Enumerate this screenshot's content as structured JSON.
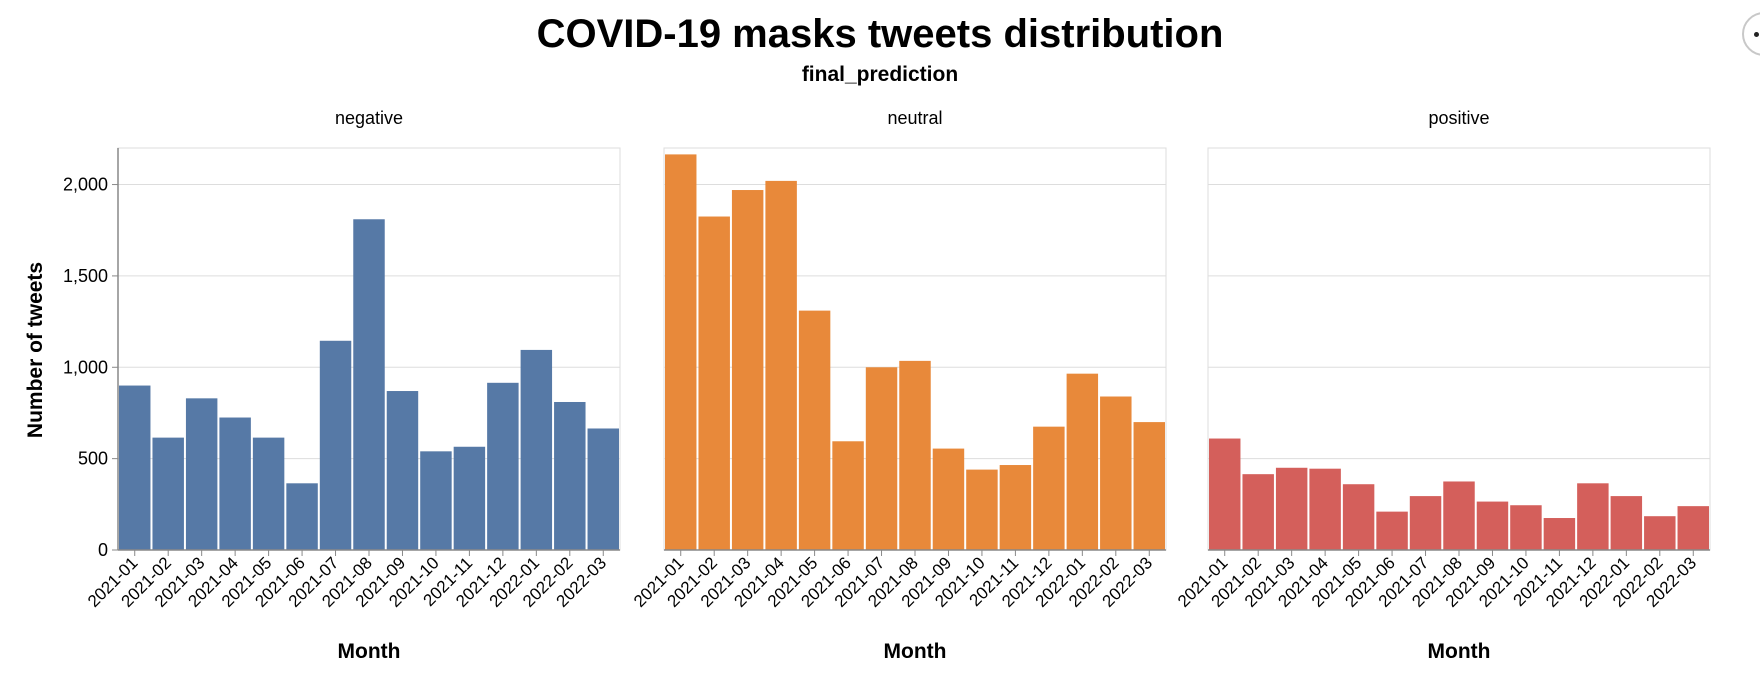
{
  "chart_data": {
    "type": "bar",
    "title": "COVID-19 masks tweets distribution",
    "facet_title": "final_prediction",
    "xlabel": "Month",
    "ylabel": "Number of tweets",
    "ylim": [
      0,
      2200
    ],
    "yticks": [
      0,
      500,
      1000,
      1500,
      2000
    ],
    "ytick_labels": [
      "0",
      "500",
      "1,000",
      "1,500",
      "2,000"
    ],
    "grid": true,
    "categories": [
      "2021-01",
      "2021-02",
      "2021-03",
      "2021-04",
      "2021-05",
      "2021-06",
      "2021-07",
      "2021-08",
      "2021-09",
      "2021-10",
      "2021-11",
      "2021-12",
      "2022-01",
      "2022-02",
      "2022-03"
    ],
    "series": [
      {
        "name": "negative",
        "color": "#5679a6",
        "values": [
          900,
          615,
          830,
          725,
          615,
          365,
          1145,
          1810,
          870,
          540,
          565,
          915,
          1095,
          810,
          665
        ]
      },
      {
        "name": "neutral",
        "color": "#e8893a",
        "values": [
          2165,
          1825,
          1970,
          2020,
          1310,
          595,
          1000,
          1035,
          555,
          440,
          465,
          675,
          965,
          840,
          700
        ]
      },
      {
        "name": "positive",
        "color": "#d45f5b",
        "values": [
          610,
          415,
          450,
          445,
          360,
          210,
          295,
          375,
          265,
          245,
          175,
          365,
          295,
          185,
          240
        ]
      }
    ]
  },
  "toolbar": {
    "menu_icon": "ellipsis-icon"
  }
}
